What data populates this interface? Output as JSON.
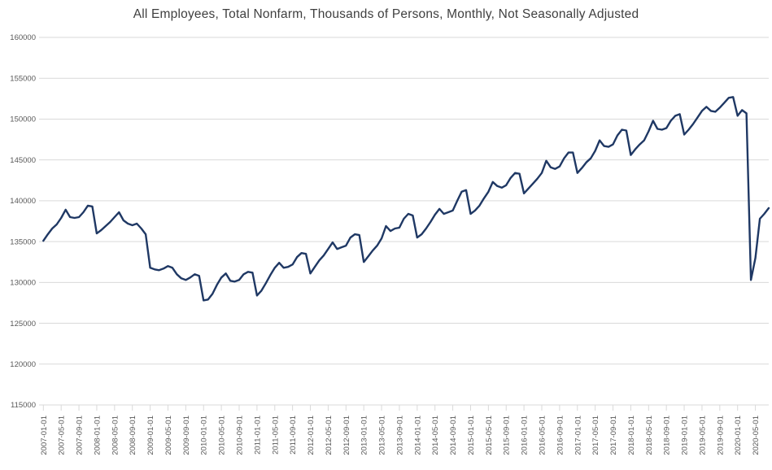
{
  "chart_data": {
    "type": "line",
    "title": "All Employees, Total Nonfarm, Thousands of Persons, Monthly, Not Seasonally Adjusted",
    "xlabel": "",
    "ylabel": "",
    "ylim": [
      115000,
      160000
    ],
    "yticks": [
      115000,
      120000,
      125000,
      130000,
      135000,
      140000,
      145000,
      150000,
      155000,
      160000
    ],
    "grid": "horizontal",
    "legend": "none",
    "line_color": "#1f3864",
    "gridline_color": "#d9d9d9",
    "axis_label_color": "#595959",
    "title_color": "#3f3f3f",
    "background": "#ffffff",
    "x_tick_every_n_months": 4,
    "x_tick_labels": [
      "2007-01-01",
      "2007-05-01",
      "2007-09-01",
      "2008-01-01",
      "2008-05-01",
      "2008-09-01",
      "2009-01-01",
      "2009-05-01",
      "2009-09-01",
      "2010-01-01",
      "2010-05-01",
      "2010-09-01",
      "2011-01-01",
      "2011-05-01",
      "2011-09-01",
      "2012-01-01",
      "2012-05-01",
      "2012-09-01",
      "2013-01-01",
      "2013-05-01",
      "2013-09-01",
      "2014-01-01",
      "2014-05-01",
      "2014-09-01",
      "2015-01-01",
      "2015-05-01",
      "2015-09-01",
      "2016-01-01",
      "2016-05-01",
      "2016-09-01",
      "2017-01-01",
      "2017-05-01",
      "2017-09-01",
      "2018-01-01",
      "2018-05-01",
      "2018-09-01",
      "2019-01-01",
      "2019-05-01",
      "2019-09-01",
      "2020-01-01",
      "2020-05-01"
    ],
    "series": [
      {
        "name": "All Employees, Total Nonfarm (thousands of persons, NSA)",
        "x": [
          "2007-01-01",
          "2007-02-01",
          "2007-03-01",
          "2007-04-01",
          "2007-05-01",
          "2007-06-01",
          "2007-07-01",
          "2007-08-01",
          "2007-09-01",
          "2007-10-01",
          "2007-11-01",
          "2007-12-01",
          "2008-01-01",
          "2008-02-01",
          "2008-03-01",
          "2008-04-01",
          "2008-05-01",
          "2008-06-01",
          "2008-07-01",
          "2008-08-01",
          "2008-09-01",
          "2008-10-01",
          "2008-11-01",
          "2008-12-01",
          "2009-01-01",
          "2009-02-01",
          "2009-03-01",
          "2009-04-01",
          "2009-05-01",
          "2009-06-01",
          "2009-07-01",
          "2009-08-01",
          "2009-09-01",
          "2009-10-01",
          "2009-11-01",
          "2009-12-01",
          "2010-01-01",
          "2010-02-01",
          "2010-03-01",
          "2010-04-01",
          "2010-05-01",
          "2010-06-01",
          "2010-07-01",
          "2010-08-01",
          "2010-09-01",
          "2010-10-01",
          "2010-11-01",
          "2010-12-01",
          "2011-01-01",
          "2011-02-01",
          "2011-03-01",
          "2011-04-01",
          "2011-05-01",
          "2011-06-01",
          "2011-07-01",
          "2011-08-01",
          "2011-09-01",
          "2011-10-01",
          "2011-11-01",
          "2011-12-01",
          "2012-01-01",
          "2012-02-01",
          "2012-03-01",
          "2012-04-01",
          "2012-05-01",
          "2012-06-01",
          "2012-07-01",
          "2012-08-01",
          "2012-09-01",
          "2012-10-01",
          "2012-11-01",
          "2012-12-01",
          "2013-01-01",
          "2013-02-01",
          "2013-03-01",
          "2013-04-01",
          "2013-05-01",
          "2013-06-01",
          "2013-07-01",
          "2013-08-01",
          "2013-09-01",
          "2013-10-01",
          "2013-11-01",
          "2013-12-01",
          "2014-01-01",
          "2014-02-01",
          "2014-03-01",
          "2014-04-01",
          "2014-05-01",
          "2014-06-01",
          "2014-07-01",
          "2014-08-01",
          "2014-09-01",
          "2014-10-01",
          "2014-11-01",
          "2014-12-01",
          "2015-01-01",
          "2015-02-01",
          "2015-03-01",
          "2015-04-01",
          "2015-05-01",
          "2015-06-01",
          "2015-07-01",
          "2015-08-01",
          "2015-09-01",
          "2015-10-01",
          "2015-11-01",
          "2015-12-01",
          "2016-01-01",
          "2016-02-01",
          "2016-03-01",
          "2016-04-01",
          "2016-05-01",
          "2016-06-01",
          "2016-07-01",
          "2016-08-01",
          "2016-09-01",
          "2016-10-01",
          "2016-11-01",
          "2016-12-01",
          "2017-01-01",
          "2017-02-01",
          "2017-03-01",
          "2017-04-01",
          "2017-05-01",
          "2017-06-01",
          "2017-07-01",
          "2017-08-01",
          "2017-09-01",
          "2017-10-01",
          "2017-11-01",
          "2017-12-01",
          "2018-01-01",
          "2018-02-01",
          "2018-03-01",
          "2018-04-01",
          "2018-05-01",
          "2018-06-01",
          "2018-07-01",
          "2018-08-01",
          "2018-09-01",
          "2018-10-01",
          "2018-11-01",
          "2018-12-01",
          "2019-01-01",
          "2019-02-01",
          "2019-03-01",
          "2019-04-01",
          "2019-05-01",
          "2019-06-01",
          "2019-07-01",
          "2019-08-01",
          "2019-09-01",
          "2019-10-01",
          "2019-11-01",
          "2019-12-01",
          "2020-01-01",
          "2020-02-01",
          "2020-03-01",
          "2020-04-01",
          "2020-05-01",
          "2020-06-01",
          "2020-07-01",
          "2020-08-01"
        ],
        "values": [
          135100,
          135900,
          136600,
          137100,
          137900,
          138900,
          138000,
          137900,
          138000,
          138600,
          139400,
          139300,
          136000,
          136400,
          136900,
          137400,
          138000,
          138600,
          137600,
          137200,
          137000,
          137200,
          136600,
          135900,
          131800,
          131600,
          131500,
          131700,
          132000,
          131800,
          131000,
          130500,
          130300,
          130600,
          131000,
          130800,
          127800,
          127900,
          128600,
          129700,
          130600,
          131100,
          130200,
          130100,
          130300,
          131000,
          131300,
          131200,
          128400,
          129000,
          129900,
          130900,
          131800,
          132400,
          131800,
          131900,
          132200,
          133100,
          133600,
          133500,
          131100,
          131900,
          132700,
          133300,
          134100,
          134900,
          134100,
          134300,
          134500,
          135500,
          135900,
          135800,
          132500,
          133200,
          133900,
          134500,
          135400,
          136900,
          136300,
          136600,
          136700,
          137800,
          138400,
          138200,
          135500,
          135900,
          136600,
          137400,
          138300,
          139000,
          138400,
          138600,
          138800,
          140000,
          141100,
          141300,
          138400,
          138800,
          139400,
          140300,
          141100,
          142300,
          141800,
          141600,
          141900,
          142800,
          143400,
          143300,
          140900,
          141500,
          142100,
          142700,
          143400,
          144900,
          144100,
          143900,
          144200,
          145200,
          145900,
          145900,
          143400,
          144000,
          144700,
          145200,
          146100,
          147400,
          146700,
          146600,
          146900,
          148000,
          148700,
          148600,
          145600,
          146300,
          146900,
          147400,
          148500,
          149800,
          148800,
          148700,
          148900,
          149800,
          150400,
          150600,
          148100,
          148700,
          149400,
          150200,
          151000,
          151500,
          151000,
          150900,
          151400,
          152000,
          152600,
          152700,
          150400,
          151100,
          150700,
          130300,
          133000,
          137800,
          138400,
          139100
        ]
      }
    ]
  }
}
